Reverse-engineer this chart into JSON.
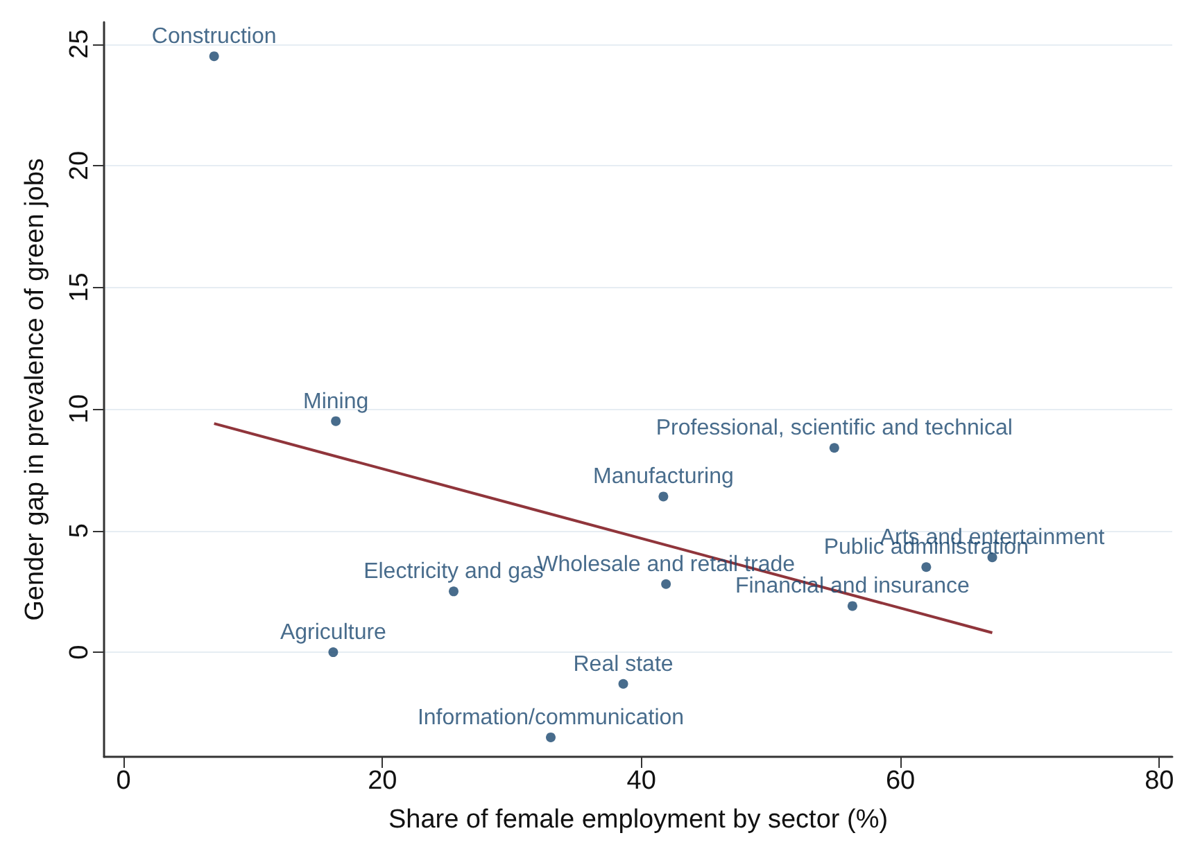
{
  "chart_data": {
    "type": "scatter",
    "xlabel": "Share of female employment by sector (%)",
    "ylabel": "Gender gap in prevalence of green jobs",
    "xlim": [
      -1.5,
      81
    ],
    "xticks": [
      0,
      20,
      40,
      60,
      80
    ],
    "ylim": [
      -4.3,
      25.9
    ],
    "yticks": [
      0,
      5,
      10,
      15,
      20,
      25
    ],
    "grid": "y",
    "series": [
      {
        "marker": "circle",
        "color": "#1a476f",
        "x": [
          7.0,
          16.4,
          16.2,
          25.5,
          33.0,
          38.6,
          41.9,
          41.7,
          54.9,
          56.3,
          62.0,
          67.1
        ],
        "values": [
          24.5,
          9.5,
          0,
          2.5,
          -3.5,
          -1.3,
          2.8,
          6.4,
          8.4,
          1.9,
          3.5,
          3.9
        ]
      },
      {
        "type": "line",
        "color": "#90353b",
        "x": [
          7.0,
          67.1
        ],
        "values": [
          9.4,
          0.8
        ]
      }
    ],
    "annotations": [
      {
        "text": "Construction",
        "x": 7.0,
        "y": 24.5
      },
      {
        "text": "Mining",
        "x": 16.4,
        "y": 9.5
      },
      {
        "text": "Agriculture",
        "x": 16.2,
        "y": 0
      },
      {
        "text": "Electricity and gas",
        "x": 25.5,
        "y": 2.5
      },
      {
        "text": "Information/communication",
        "x": 33.0,
        "y": -3.5
      },
      {
        "text": "Real state",
        "x": 38.6,
        "y": -1.3
      },
      {
        "text": "Wholesale and retail trade",
        "x": 41.9,
        "y": 2.8
      },
      {
        "text": "Manufacturing",
        "x": 41.7,
        "y": 6.4
      },
      {
        "text": "Professional, scientific and technical",
        "x": 54.9,
        "y": 8.4
      },
      {
        "text": "Financial and insurance",
        "x": 56.3,
        "y": 1.9
      },
      {
        "text": "Public administration",
        "x": 62.0,
        "y": 3.5
      },
      {
        "text": "Arts and entertainment",
        "x": 67.1,
        "y": 3.9
      }
    ]
  }
}
